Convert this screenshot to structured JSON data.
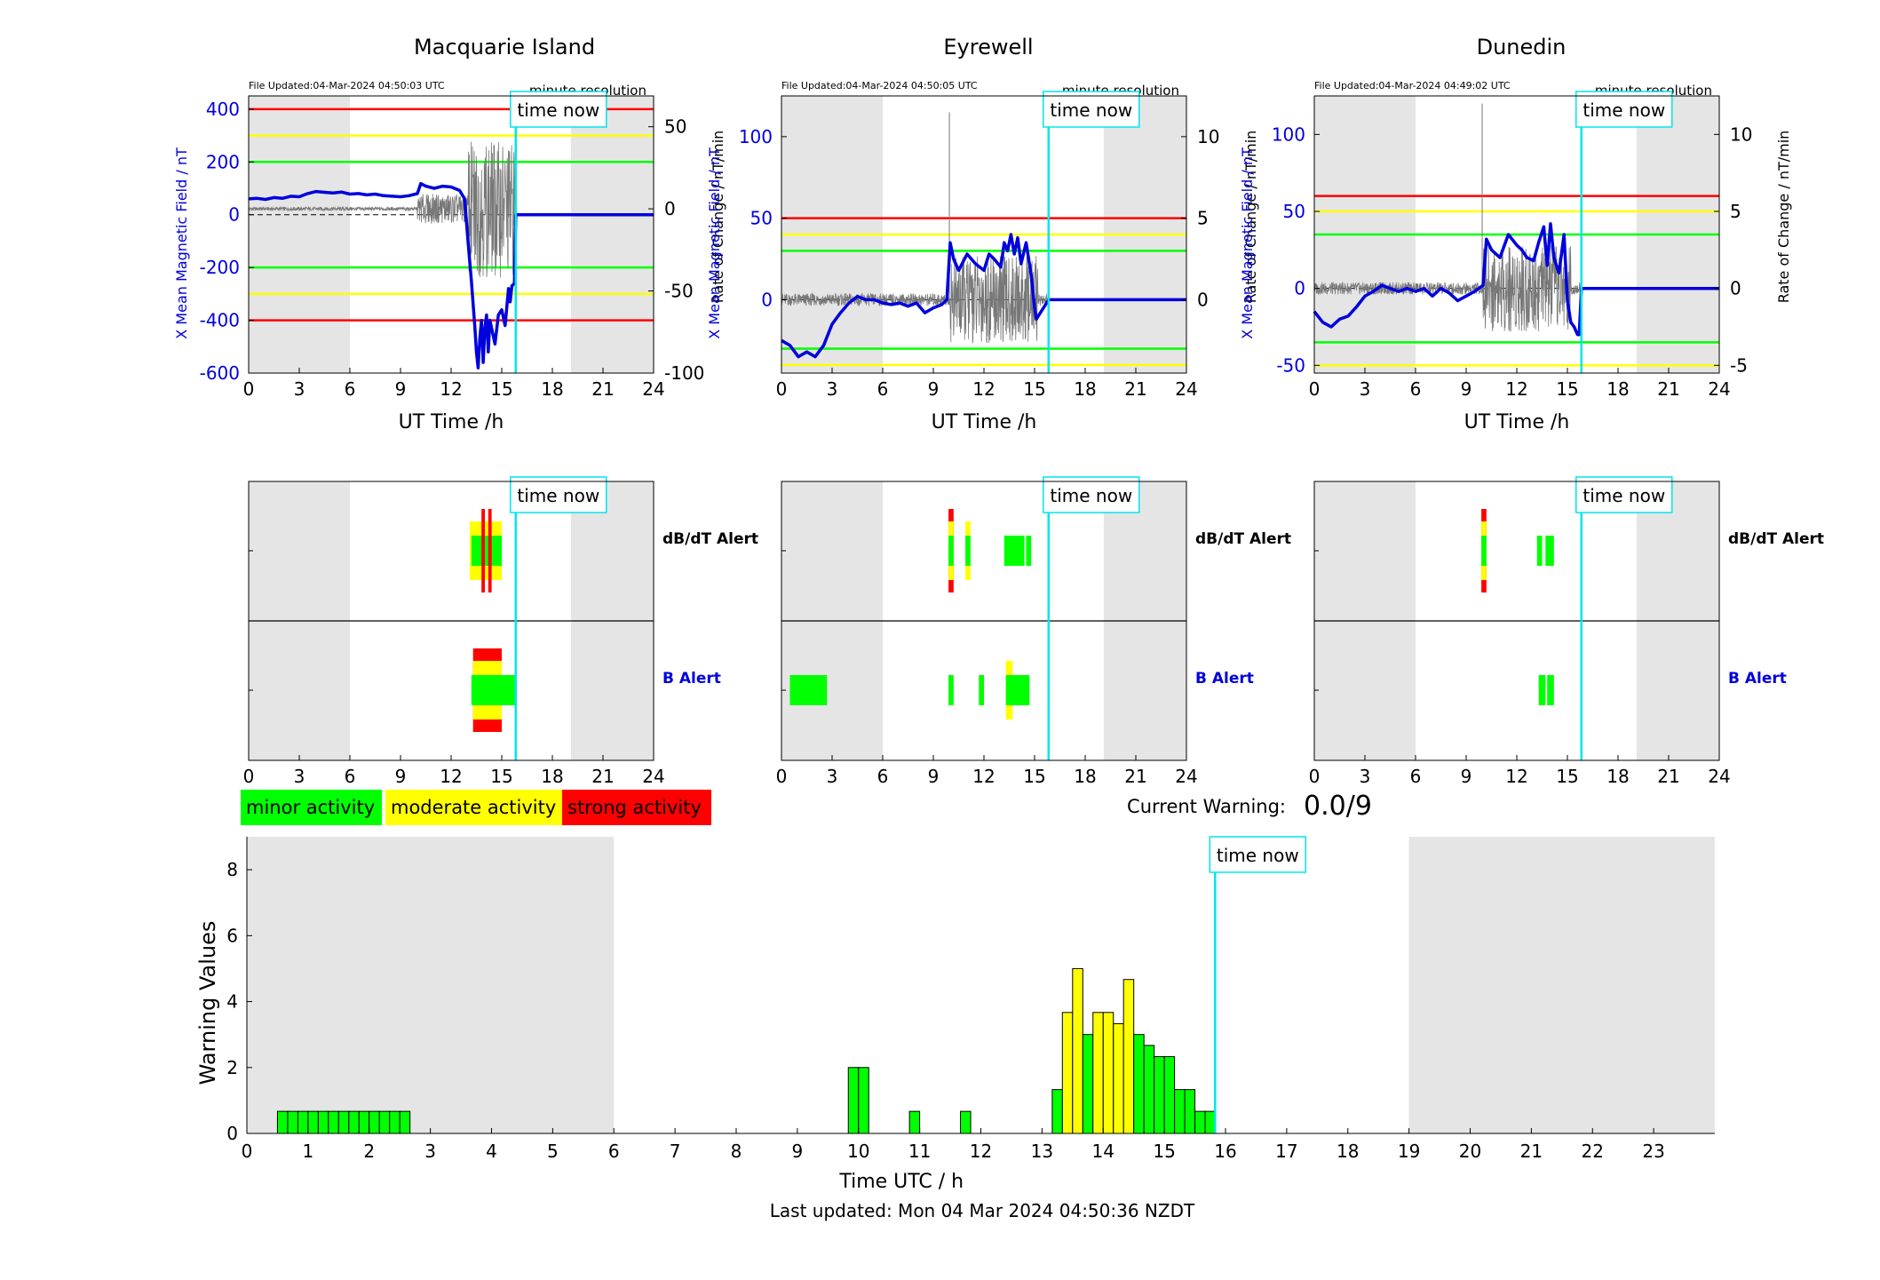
{
  "text": {
    "resolution": "minute resolution",
    "time_now": "time now",
    "ut_xlabel": "UT Time /h",
    "left_ylabel": "X Mean Magnetic Field / nT",
    "right_ylabel": "Rate of Change / nT/min",
    "db_alert": "dB/dT Alert",
    "b_alert": "B Alert",
    "legend_minor": "minor activity",
    "legend_moderate": "moderate activity",
    "legend_strong": "strong activity",
    "current_warning_label": "Current Warning:",
    "current_warning_value": "0.0/9",
    "warning_ylabel": "Warning Values",
    "warning_xlabel": "Time UTC / h",
    "last_updated": "Last updated: Mon 04 Mar 2024 04:50:36 NZDT"
  },
  "colors": {
    "minor": "#00ff00",
    "moderate": "#ffff00",
    "strong": "#ff0000",
    "field_line": "#0000dd",
    "time_now_line": "#00e5ee",
    "night_shade": "#e5e5e5"
  },
  "time_now_hour": 15.83,
  "stations": [
    {
      "name": "Macquarie Island",
      "file_updated": "File Updated:04-Mar-2024 04:50:03 UTC",
      "night_shading_hours": [
        [
          0,
          6
        ],
        [
          19.1,
          24
        ]
      ],
      "chart_data": {
        "type": "line",
        "xlabel": "UT Time /h",
        "ylabel": "X Mean Magnetic Field / nT",
        "y2label": "Rate of Change / nT/min",
        "xlim": [
          0,
          24
        ],
        "xticks": [
          0,
          3,
          6,
          9,
          12,
          15,
          18,
          21,
          24
        ],
        "ylim": [
          -600,
          450
        ],
        "yticks": [
          -600,
          -400,
          -200,
          0,
          200,
          400
        ],
        "y2lim": [
          -100,
          68.75
        ],
        "y2ticks": [
          -100,
          -50,
          0,
          50
        ],
        "thresholds": [
          {
            "level": "strong",
            "value": 400
          },
          {
            "level": "moderate",
            "value": 300
          },
          {
            "level": "minor",
            "value": 200
          },
          {
            "level": "minor",
            "value": -200
          },
          {
            "level": "moderate",
            "value": -300
          },
          {
            "level": "strong",
            "value": -400
          }
        ],
        "field_series": {
          "x": [
            0,
            0.5,
            1,
            1.5,
            2,
            2.5,
            3,
            3.5,
            4,
            4.5,
            5,
            5.5,
            6,
            6.5,
            7,
            7.5,
            8,
            8.5,
            9,
            9.5,
            10,
            10.2,
            10.5,
            11,
            11.5,
            12,
            12.5,
            12.8,
            13,
            13.2,
            13.4,
            13.5,
            13.6,
            13.7,
            13.8,
            13.9,
            14.0,
            14.1,
            14.2,
            14.3,
            14.4,
            14.6,
            14.8,
            15.0,
            15.2,
            15.4,
            15.5,
            15.6,
            15.75,
            15.83,
            16,
            24
          ],
          "y": [
            60,
            62,
            58,
            65,
            62,
            70,
            68,
            80,
            88,
            85,
            82,
            86,
            78,
            80,
            75,
            78,
            72,
            70,
            68,
            72,
            80,
            118,
            108,
            100,
            108,
            105,
            92,
            60,
            -100,
            -250,
            -420,
            -520,
            -580,
            -470,
            -400,
            -560,
            -430,
            -380,
            -520,
            -400,
            -430,
            -490,
            -380,
            -360,
            -420,
            -280,
            -330,
            -270,
            -260,
            0,
            0,
            0
          ]
        },
        "rate_series_note": "gray rate-of-change trace; quiet before 10 h, oscillating roughly between -60 and 60 nT/min from 13 h to 15.8 h"
      }
    },
    {
      "name": "Eyrewell",
      "file_updated": "File Updated:04-Mar-2024 04:50:05 UTC",
      "night_shading_hours": [
        [
          0,
          6
        ],
        [
          19.1,
          24
        ]
      ],
      "chart_data": {
        "type": "line",
        "xlabel": "UT Time /h",
        "ylabel": "X Mean Magnetic Field / nT",
        "y2label": "Rate of Change / nT/min",
        "xlim": [
          0,
          24
        ],
        "xticks": [
          0,
          3,
          6,
          9,
          12,
          15,
          18,
          21,
          24
        ],
        "ylim": [
          -45,
          125
        ],
        "yticks": [
          0,
          50,
          100
        ],
        "y2lim": [
          -4.5,
          12.5
        ],
        "y2ticks": [
          0,
          5,
          10
        ],
        "thresholds": [
          {
            "level": "strong",
            "value": 50
          },
          {
            "level": "moderate",
            "value": 40
          },
          {
            "level": "minor",
            "value": 30
          },
          {
            "level": "minor",
            "value": -30
          },
          {
            "level": "moderate",
            "value": -40
          }
        ],
        "field_series": {
          "x": [
            0,
            0.5,
            1,
            1.5,
            2,
            2.5,
            3,
            3.5,
            4,
            4.5,
            5,
            5.5,
            6,
            6.5,
            7,
            7.5,
            8,
            8.5,
            9,
            9.5,
            9.8,
            10.0,
            10.2,
            10.5,
            11,
            11.5,
            12,
            12.3,
            12.6,
            13,
            13.2,
            13.4,
            13.6,
            13.8,
            14,
            14.2,
            14.5,
            14.8,
            15.0,
            15.1,
            15.83,
            24
          ],
          "y": [
            -25,
            -28,
            -35,
            -32,
            -35,
            -28,
            -15,
            -8,
            -2,
            2,
            0,
            0,
            -2,
            -3,
            -2,
            -4,
            -2,
            -8,
            -5,
            -3,
            0,
            35,
            25,
            18,
            28,
            22,
            18,
            28,
            25,
            20,
            35,
            30,
            40,
            28,
            38,
            22,
            35,
            15,
            -5,
            -12,
            0,
            0
          ]
        },
        "rate_series_note": "gray rate-of-change trace with a spike to ~11.5 nT/min near 10 h and oscillations between 10 h and 15 h"
      }
    },
    {
      "name": "Dunedin",
      "file_updated": "File Updated:04-Mar-2024 04:49:02 UTC",
      "night_shading_hours": [
        [
          0,
          6
        ],
        [
          19.1,
          24
        ]
      ],
      "chart_data": {
        "type": "line",
        "xlabel": "UT Time /h",
        "ylabel": "X Mean Magnetic Field / nT",
        "y2label": "Rate of Change / nT/min",
        "xlim": [
          0,
          24
        ],
        "xticks": [
          0,
          3,
          6,
          9,
          12,
          15,
          18,
          21,
          24
        ],
        "ylim": [
          -55,
          125
        ],
        "yticks": [
          -50,
          0,
          50,
          100
        ],
        "y2lim": [
          -5.5,
          12.5
        ],
        "y2ticks": [
          -5,
          0,
          5,
          10
        ],
        "thresholds": [
          {
            "level": "strong",
            "value": 60
          },
          {
            "level": "moderate",
            "value": 50
          },
          {
            "level": "minor",
            "value": 35
          },
          {
            "level": "minor",
            "value": -35
          },
          {
            "level": "moderate",
            "value": -50
          }
        ],
        "field_series": {
          "x": [
            0,
            0.5,
            1,
            1.5,
            2,
            2.5,
            3,
            3.5,
            4,
            4.5,
            5,
            5.5,
            6,
            6.5,
            7,
            7.5,
            8,
            8.5,
            9,
            9.5,
            10.0,
            10.2,
            10.5,
            11,
            11.5,
            12,
            12.3,
            12.6,
            13,
            13.3,
            13.6,
            13.8,
            14.0,
            14.2,
            14.5,
            14.8,
            15.0,
            15.2,
            15.4,
            15.6,
            15.7,
            15.83,
            24
          ],
          "y": [
            -15,
            -22,
            -25,
            -20,
            -18,
            -12,
            -5,
            -2,
            2,
            0,
            -2,
            0,
            -2,
            0,
            -5,
            0,
            -3,
            -8,
            -5,
            -2,
            2,
            32,
            25,
            20,
            35,
            28,
            25,
            20,
            18,
            30,
            40,
            15,
            42,
            20,
            10,
            35,
            -8,
            -22,
            -25,
            -30,
            -30,
            0,
            0
          ]
        },
        "rate_series_note": "gray rate-of-change trace with a spike to ~12 nT/min near 10 h and oscillations between 10 h and 15.5 h"
      }
    }
  ],
  "alerts": [
    {
      "station": "Macquarie Island",
      "db_alert": [
        {
          "start": 13.1,
          "end": 15.0,
          "level": "moderate"
        },
        {
          "start": 13.2,
          "end": 15.0,
          "level": "minor"
        },
        {
          "start": 13.8,
          "end": 14.0,
          "level": "strong"
        },
        {
          "start": 14.2,
          "end": 14.4,
          "level": "strong"
        }
      ],
      "b_alert": [
        {
          "start": 13.3,
          "end": 15.0,
          "level": "strong"
        },
        {
          "start": 13.3,
          "end": 15.0,
          "level": "moderate"
        },
        {
          "start": 13.2,
          "end": 15.8,
          "level": "minor"
        }
      ]
    },
    {
      "station": "Eyrewell",
      "db_alert": [
        {
          "start": 9.9,
          "end": 10.2,
          "level": "strong"
        },
        {
          "start": 9.9,
          "end": 10.2,
          "level": "moderate"
        },
        {
          "start": 9.9,
          "end": 10.2,
          "level": "minor"
        },
        {
          "start": 10.9,
          "end": 11.2,
          "level": "moderate"
        },
        {
          "start": 10.9,
          "end": 11.2,
          "level": "minor"
        },
        {
          "start": 13.2,
          "end": 14.4,
          "level": "minor"
        },
        {
          "start": 14.5,
          "end": 14.8,
          "level": "minor"
        }
      ],
      "b_alert": [
        {
          "start": 0.5,
          "end": 2.7,
          "level": "minor"
        },
        {
          "start": 9.9,
          "end": 10.2,
          "level": "minor"
        },
        {
          "start": 11.7,
          "end": 12.0,
          "level": "minor"
        },
        {
          "start": 13.3,
          "end": 13.7,
          "level": "moderate"
        },
        {
          "start": 13.3,
          "end": 14.7,
          "level": "minor"
        }
      ]
    },
    {
      "station": "Dunedin",
      "db_alert": [
        {
          "start": 9.9,
          "end": 10.2,
          "level": "strong"
        },
        {
          "start": 9.9,
          "end": 10.2,
          "level": "moderate"
        },
        {
          "start": 9.9,
          "end": 10.2,
          "level": "minor"
        },
        {
          "start": 13.2,
          "end": 13.5,
          "level": "minor"
        },
        {
          "start": 13.7,
          "end": 14.2,
          "level": "minor"
        }
      ],
      "b_alert": [
        {
          "start": 13.3,
          "end": 13.7,
          "level": "minor"
        },
        {
          "start": 13.8,
          "end": 14.2,
          "level": "minor"
        }
      ]
    }
  ],
  "chart_data": {
    "type": "bar",
    "title": "",
    "xlabel": "Time UTC / h",
    "ylabel": "Warning Values",
    "xlim": [
      0,
      24
    ],
    "xticks": [
      0,
      1,
      2,
      3,
      4,
      5,
      6,
      7,
      8,
      9,
      10,
      11,
      12,
      13,
      14,
      15,
      16,
      17,
      18,
      19,
      20,
      21,
      22,
      23
    ],
    "ylim": [
      0,
      9
    ],
    "yticks": [
      0,
      2,
      4,
      6,
      8
    ],
    "bin_width_h": 0.1667,
    "night_shading_hours": [
      [
        0,
        6
      ],
      [
        19,
        24
      ]
    ],
    "bars": [
      {
        "x": 0.5,
        "value": 0.67,
        "level": "minor"
      },
      {
        "x": 0.667,
        "value": 0.67,
        "level": "minor"
      },
      {
        "x": 0.833,
        "value": 0.67,
        "level": "minor"
      },
      {
        "x": 1.0,
        "value": 0.67,
        "level": "minor"
      },
      {
        "x": 1.167,
        "value": 0.67,
        "level": "minor"
      },
      {
        "x": 1.333,
        "value": 0.67,
        "level": "minor"
      },
      {
        "x": 1.5,
        "value": 0.67,
        "level": "minor"
      },
      {
        "x": 1.667,
        "value": 0.67,
        "level": "minor"
      },
      {
        "x": 1.833,
        "value": 0.67,
        "level": "minor"
      },
      {
        "x": 2.0,
        "value": 0.67,
        "level": "minor"
      },
      {
        "x": 2.167,
        "value": 0.67,
        "level": "minor"
      },
      {
        "x": 2.333,
        "value": 0.67,
        "level": "minor"
      },
      {
        "x": 2.5,
        "value": 0.67,
        "level": "minor"
      },
      {
        "x": 9.833,
        "value": 2.0,
        "level": "minor"
      },
      {
        "x": 10.0,
        "value": 2.0,
        "level": "minor"
      },
      {
        "x": 10.833,
        "value": 0.67,
        "level": "minor"
      },
      {
        "x": 11.667,
        "value": 0.67,
        "level": "minor"
      },
      {
        "x": 13.167,
        "value": 1.33,
        "level": "minor"
      },
      {
        "x": 13.333,
        "value": 3.67,
        "level": "moderate"
      },
      {
        "x": 13.5,
        "value": 5.0,
        "level": "moderate"
      },
      {
        "x": 13.667,
        "value": 3.0,
        "level": "minor"
      },
      {
        "x": 13.833,
        "value": 3.67,
        "level": "moderate"
      },
      {
        "x": 14.0,
        "value": 3.67,
        "level": "moderate"
      },
      {
        "x": 14.167,
        "value": 3.33,
        "level": "moderate"
      },
      {
        "x": 14.333,
        "value": 4.67,
        "level": "moderate"
      },
      {
        "x": 14.5,
        "value": 3.0,
        "level": "minor"
      },
      {
        "x": 14.667,
        "value": 2.67,
        "level": "minor"
      },
      {
        "x": 14.833,
        "value": 2.33,
        "level": "minor"
      },
      {
        "x": 15.0,
        "value": 2.33,
        "level": "minor"
      },
      {
        "x": 15.167,
        "value": 1.33,
        "level": "minor"
      },
      {
        "x": 15.333,
        "value": 1.33,
        "level": "minor"
      },
      {
        "x": 15.5,
        "value": 0.67,
        "level": "minor"
      },
      {
        "x": 15.667,
        "value": 0.67,
        "level": "minor"
      }
    ]
  }
}
